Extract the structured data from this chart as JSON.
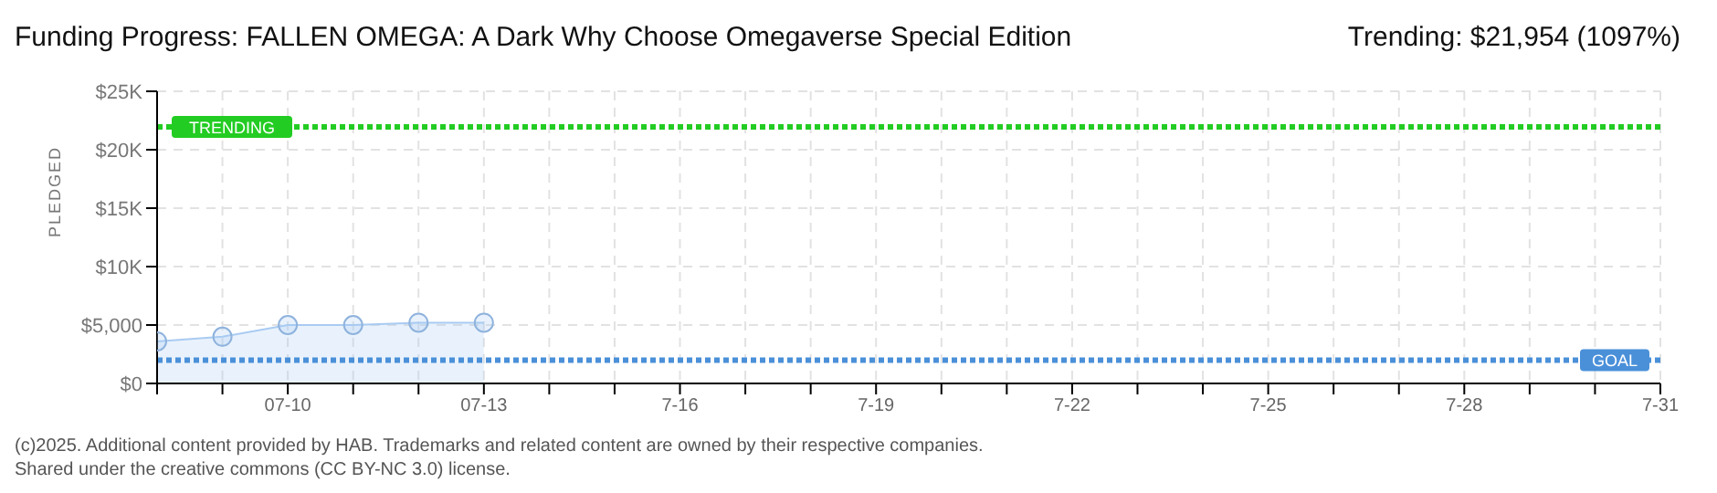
{
  "chart_data": {
    "type": "area",
    "title": "Funding Progress: FALLEN OMEGA: A Dark Why Choose Omegaverse Special Edition",
    "subtitle": "Trending:  $21,954 (1097%)",
    "ylabel": "PLEDGED",
    "x": [
      "--07-08",
      "--07-09",
      "--07-10",
      "--07-11",
      "--07-12",
      "--07-13"
    ],
    "series": [
      {
        "color": "#a9cbf2",
        "values": [
          3600,
          4000,
          5000,
          5000,
          5200,
          5200
        ]
      }
    ],
    "xlim": [
      "--07-08",
      "--07-31"
    ],
    "xticks": [
      {
        "value": "--07-08",
        "label": null
      },
      {
        "value": "--07-09",
        "label": null
      },
      {
        "value": "--07-10",
        "label": "07-10"
      },
      {
        "value": "--07-11",
        "label": null
      },
      {
        "value": "--07-12",
        "label": null
      },
      {
        "value": "--07-13",
        "label": "07-13"
      },
      {
        "value": "--07-14",
        "label": null
      },
      {
        "value": "--07-15",
        "label": null
      },
      {
        "value": "--07-16",
        "label": "7-16"
      },
      {
        "value": "--07-17",
        "label": null
      },
      {
        "value": "--07-18",
        "label": null
      },
      {
        "value": "--07-19",
        "label": "7-19"
      },
      {
        "value": "--07-20",
        "label": null
      },
      {
        "value": "--07-21",
        "label": null
      },
      {
        "value": "--07-22",
        "label": "7-22"
      },
      {
        "value": "--07-23",
        "label": null
      },
      {
        "value": "--07-24",
        "label": null
      },
      {
        "value": "--07-25",
        "label": "7-25"
      },
      {
        "value": "--07-26",
        "label": null
      },
      {
        "value": "--07-27",
        "label": null
      },
      {
        "value": "--07-28",
        "label": "7-28"
      },
      {
        "value": "--07-29",
        "label": null
      },
      {
        "value": "--07-30",
        "label": null
      },
      {
        "value": "--07-31",
        "label": "7-31"
      }
    ],
    "ylim": [
      0,
      25000
    ],
    "yticks": [
      {
        "value": 0,
        "label": "$0"
      },
      {
        "value": 5000,
        "label": "$5,000"
      },
      {
        "value": 10000,
        "label": "$10K"
      },
      {
        "value": 15000,
        "label": "$15K"
      },
      {
        "value": 20000,
        "label": "$20K"
      },
      {
        "value": 25000,
        "label": "$25K"
      }
    ],
    "ref_lines": [
      {
        "axis": "y",
        "value": 21954,
        "label": "TRENDING",
        "color": "#22cc22",
        "line_style": "dotted"
      },
      {
        "axis": "y",
        "value": 2000,
        "label": "GOAL",
        "color": "#4a90d9",
        "line_style": "dotted"
      }
    ],
    "grid": true,
    "marker": "circle",
    "legend": false,
    "annotations": [
      "(c)2025. Additional content provided by HAB. Trademarks and related content are owned by their respective companies.",
      "Shared under the creative commons (CC BY-NC 3.0) license."
    ]
  }
}
